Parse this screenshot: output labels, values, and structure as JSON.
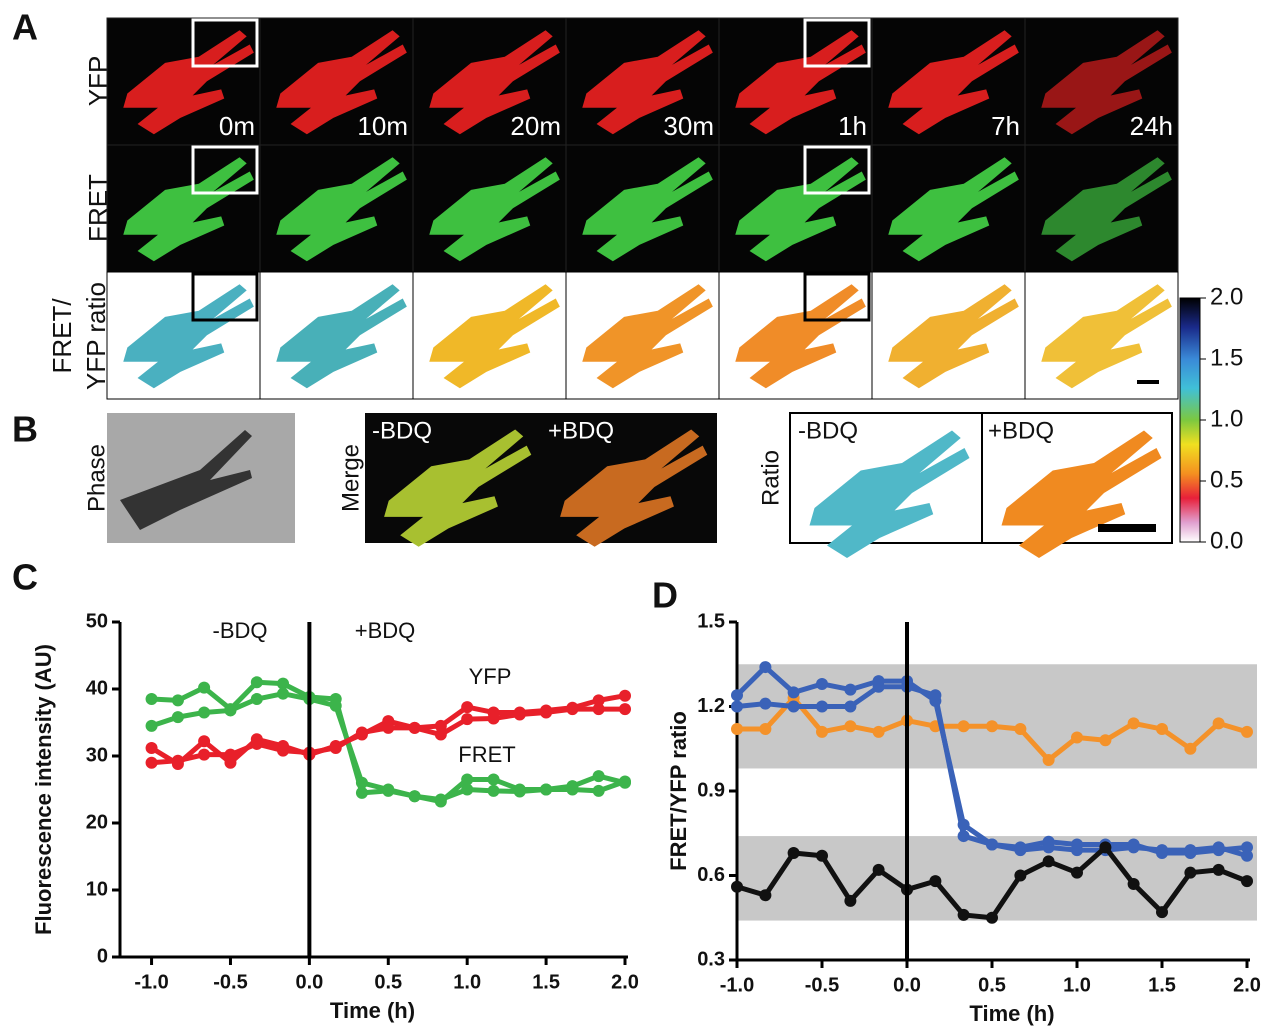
{
  "panel_labels": [
    "A",
    "B",
    "C",
    "D"
  ],
  "panel_a": {
    "row_labels": [
      "YFP",
      "FRET",
      "FRET/",
      "YFP ratio"
    ],
    "times": [
      "0m",
      "10m",
      "20m",
      "30m",
      "1h",
      "7h",
      "24h"
    ]
  },
  "panel_b": {
    "phase_label": "Phase",
    "merge_label": "Merge",
    "ratio_label": "Ratio",
    "merge_panels": [
      "-BDQ",
      "+BDQ"
    ],
    "ratio_panels": [
      "-BDQ",
      "+BDQ"
    ]
  },
  "colorbar": {
    "lim": [
      0,
      2
    ],
    "ticks": [
      {
        "value": 2,
        "label": "2.0"
      },
      {
        "value": 1.5,
        "label": "1.5"
      },
      {
        "value": 1,
        "label": "1.0"
      },
      {
        "value": 0.5,
        "label": "0.5"
      },
      {
        "value": 0,
        "label": "0.0"
      }
    ]
  },
  "chart_data": [
    {
      "type": "line",
      "x_label": "Time (h)",
      "y_label": "Fluorescence intensity (AU)",
      "annotations": [
        "-BDQ",
        "+BDQ",
        "YFP",
        "FRET"
      ],
      "vline": 0,
      "x": [
        -1,
        -0.833,
        -0.667,
        -0.5,
        -0.333,
        -0.167,
        0,
        0.167,
        0.333,
        0.5,
        0.667,
        0.833,
        1,
        1.167,
        1.333,
        1.5,
        1.667,
        1.833,
        2
      ],
      "xlim": [
        -1.2,
        2
      ],
      "xticks": [
        {
          "value": -1,
          "label": "-1.0"
        },
        {
          "value": -0.5,
          "label": "-0.5"
        },
        {
          "value": 0,
          "label": "0.0"
        },
        {
          "value": 0.5,
          "label": "0.5"
        },
        {
          "value": 1,
          "label": "1.0"
        },
        {
          "value": 1.5,
          "label": "1.5"
        },
        {
          "value": 2,
          "label": "2.0"
        }
      ],
      "ylim": [
        0,
        50
      ],
      "yticks": [
        0,
        10,
        20,
        30,
        40,
        50
      ],
      "series": [
        {
          "color": "#3cb44b",
          "values": [
            38.5,
            38.3,
            40.2,
            37,
            41,
            40.8,
            38.8,
            38.5,
            24.5,
            24.8,
            24,
            23.2,
            26.5,
            26.5,
            25,
            25,
            25.5,
            27,
            26
          ]
        },
        {
          "color": "#3cb44b",
          "values": [
            34.5,
            35.8,
            36.5,
            36.8,
            38.5,
            39.3,
            38.5,
            37.5,
            26,
            25,
            24,
            23.5,
            25,
            24.8,
            24.7,
            25,
            25,
            24.8,
            26.2
          ]
        },
        {
          "color": "#e8202a",
          "values": [
            31.2,
            28.8,
            32.2,
            29,
            32.5,
            31.5,
            30.2,
            31.5,
            33.2,
            35.2,
            34.2,
            34.5,
            37.3,
            36.5,
            36.5,
            36.8,
            37.2,
            38.3,
            39
          ]
        },
        {
          "color": "#e8202a",
          "values": [
            29,
            29.3,
            30.2,
            30.2,
            31.8,
            30.8,
            30.5,
            31.2,
            33.5,
            34.2,
            34.2,
            33.2,
            35.5,
            35.6,
            36.2,
            36.5,
            37,
            37,
            37
          ]
        }
      ]
    },
    {
      "type": "line",
      "x_label": "Time (h)",
      "y_label": "FRET/YFP ratio",
      "vline": 0,
      "bands": [
        [
          0.98,
          1.35
        ],
        [
          0.44,
          0.74
        ]
      ],
      "band_color": "#c8c8c8",
      "x": [
        -1,
        -0.833,
        -0.667,
        -0.5,
        -0.333,
        -0.167,
        0,
        0.167,
        0.333,
        0.5,
        0.667,
        0.833,
        1,
        1.167,
        1.333,
        1.5,
        1.667,
        1.833,
        2
      ],
      "xlim": [
        -1,
        2
      ],
      "xticks": [
        {
          "value": -1,
          "label": "-1.0"
        },
        {
          "value": -0.5,
          "label": "-0.5"
        },
        {
          "value": 0,
          "label": "0.0"
        },
        {
          "value": 0.5,
          "label": "0.5"
        },
        {
          "value": 1,
          "label": "1.0"
        },
        {
          "value": 1.5,
          "label": "1.5"
        },
        {
          "value": 2,
          "label": "2.0"
        }
      ],
      "ylim": [
        0.3,
        1.5
      ],
      "yticks": [
        0.3,
        0.6,
        0.9,
        1.2,
        1.5
      ],
      "series": [
        {
          "color": "#f4922a",
          "values": [
            1.12,
            1.12,
            1.23,
            1.11,
            1.13,
            1.11,
            1.15,
            1.13,
            1.13,
            1.13,
            1.12,
            1.01,
            1.09,
            1.08,
            1.14,
            1.12,
            1.05,
            1.14,
            1.11
          ]
        },
        {
          "color": "#3a62b8",
          "values": [
            1.24,
            1.34,
            1.25,
            1.28,
            1.26,
            1.29,
            1.29,
            1.22,
            0.78,
            0.71,
            0.7,
            0.72,
            0.71,
            0.71,
            0.71,
            0.68,
            0.68,
            0.69,
            0.7
          ]
        },
        {
          "color": "#3a62b8",
          "values": [
            1.2,
            1.21,
            1.2,
            1.2,
            1.2,
            1.27,
            1.27,
            1.24,
            0.74,
            0.71,
            0.69,
            0.7,
            0.69,
            0.69,
            0.7,
            0.69,
            0.69,
            0.7,
            0.67
          ]
        },
        {
          "color": "#111111",
          "values": [
            0.56,
            0.53,
            0.68,
            0.67,
            0.51,
            0.62,
            0.55,
            0.58,
            0.46,
            0.45,
            0.6,
            0.65,
            0.61,
            0.7,
            0.57,
            0.47,
            0.61,
            0.62,
            0.58
          ]
        }
      ]
    }
  ]
}
